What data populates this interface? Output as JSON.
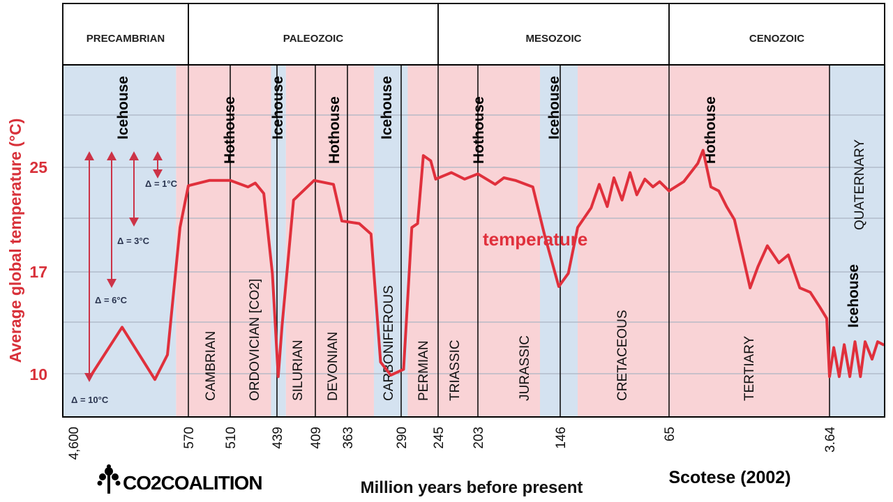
{
  "chart_data": {
    "type": "line",
    "ylabel": "Average global temperature (°C)",
    "xlabel": "Million years before present",
    "source": "Scotese (2002)",
    "logo_text": "CO2COALITION",
    "series_label": "temperature",
    "y_ticks": [
      "25",
      "17",
      "10"
    ],
    "y_tick_values": [
      25,
      17,
      10
    ],
    "x_ticks": [
      "4,600",
      "570",
      "510",
      "439",
      "409",
      "363",
      "290",
      "245",
      "203",
      "146",
      "65",
      "3.64"
    ],
    "x_tick_values": [
      4600,
      570,
      510,
      439,
      409,
      363,
      290,
      245,
      203,
      146,
      65,
      3.64
    ],
    "x_scale": "piecewise (ticks evenly spaced by era, not linear)",
    "grid": true,
    "colors": {
      "line": "#e0303c",
      "hothouse": "#f9d3d6",
      "icehouse": "#d4e2f0",
      "axis_text": "#d8313a"
    },
    "eras": [
      {
        "label": "PRECAMBRIAN",
        "from": 4600,
        "to": 570
      },
      {
        "label": "PALEOZOIC",
        "from": 570,
        "to": 245
      },
      {
        "label": "MESOZOIC",
        "from": 245,
        "to": 65
      },
      {
        "label": "CENOZOIC",
        "from": 65,
        "to": 0
      }
    ],
    "periods": [
      "CAMBRIAN",
      "ORDOVICIAN [CO2]",
      "SILURIAN",
      "DEVONIAN",
      "CARBONIFEROUS",
      "PERMIAN",
      "TRIASSIC",
      "JURASSIC",
      "CRETACEOUS",
      "TERTIARY",
      "QUATERNARY"
    ],
    "climate_bands": [
      {
        "label": "Icehouse",
        "state": "icehouse",
        "from": 4600,
        "to": 1000
      },
      {
        "label": "Hothouse",
        "state": "hothouse",
        "from": 1000,
        "to": 448
      },
      {
        "label": "Icehouse",
        "state": "icehouse",
        "from": 448,
        "to": 432
      },
      {
        "label": "Hothouse",
        "state": "hothouse",
        "from": 432,
        "to": 327
      },
      {
        "label": "Icehouse",
        "state": "icehouse",
        "from": 327,
        "to": 282
      },
      {
        "label": "Hothouse",
        "state": "hothouse",
        "from": 282,
        "to": 160
      },
      {
        "label": "Icehouse",
        "state": "icehouse",
        "from": 160,
        "to": 133
      },
      {
        "label": "Hothouse",
        "state": "hothouse",
        "from": 133,
        "to": 3.64
      },
      {
        "label": "Icehouse",
        "state": "icehouse",
        "from": 3.64,
        "to": 0
      }
    ],
    "deltas": [
      "Δ = 1°C",
      "Δ = 3°C",
      "Δ = 6°C",
      "Δ = 10°C"
    ],
    "series": [
      {
        "x": [
          3940,
          2890,
          1742,
          1303,
          863,
          570,
          540,
          510,
          483,
          472,
          459,
          446,
          438,
          435,
          426,
          410,
          383,
          371,
          347,
          331,
          318,
          304,
          287,
          277,
          270,
          263,
          254,
          248,
          231,
          217,
          203,
          191,
          185,
          177,
          165,
          157,
          147,
          140,
          133,
          123,
          117,
          111,
          106,
          100,
          94,
          89,
          83,
          77,
          72,
          65,
          59.4,
          54,
          52,
          49,
          46,
          43,
          40,
          37,
          34,
          31,
          27.4,
          23,
          19.4,
          15,
          11,
          7.4,
          4.7,
          3.64,
          3.36,
          3.0,
          2.67,
          2.3,
          1.96,
          1.6,
          1.29,
          0.83,
          0.46,
          0.09
        ],
        "y": [
          10.0,
          13.2,
          9.6,
          11.3,
          20.4,
          23.6,
          24.0,
          24.0,
          23.5,
          23.8,
          23.0,
          16.9,
          9.8,
          13.3,
          22.5,
          24.0,
          23.7,
          20.9,
          20.7,
          19.9,
          10.8,
          9.9,
          10.3,
          20.4,
          20.7,
          25.9,
          25.5,
          24.1,
          24.6,
          24.1,
          24.5,
          23.7,
          24.2,
          24.0,
          23.5,
          19.9,
          16.0,
          16.9,
          20.4,
          21.9,
          23.7,
          22.0,
          24.2,
          22.5,
          24.6,
          22.9,
          24.1,
          23.5,
          23.9,
          23.2,
          23.9,
          25.3,
          26.3,
          23.5,
          23.2,
          22.0,
          21.0,
          18.4,
          15.9,
          17.4,
          19.0,
          17.7,
          18.3,
          15.9,
          15.6,
          14.6,
          13.8,
          9.8,
          11.8,
          9.8,
          12.0,
          9.8,
          12.2,
          9.8,
          12.2,
          11.0,
          12.2,
          12.0
        ]
      }
    ]
  }
}
